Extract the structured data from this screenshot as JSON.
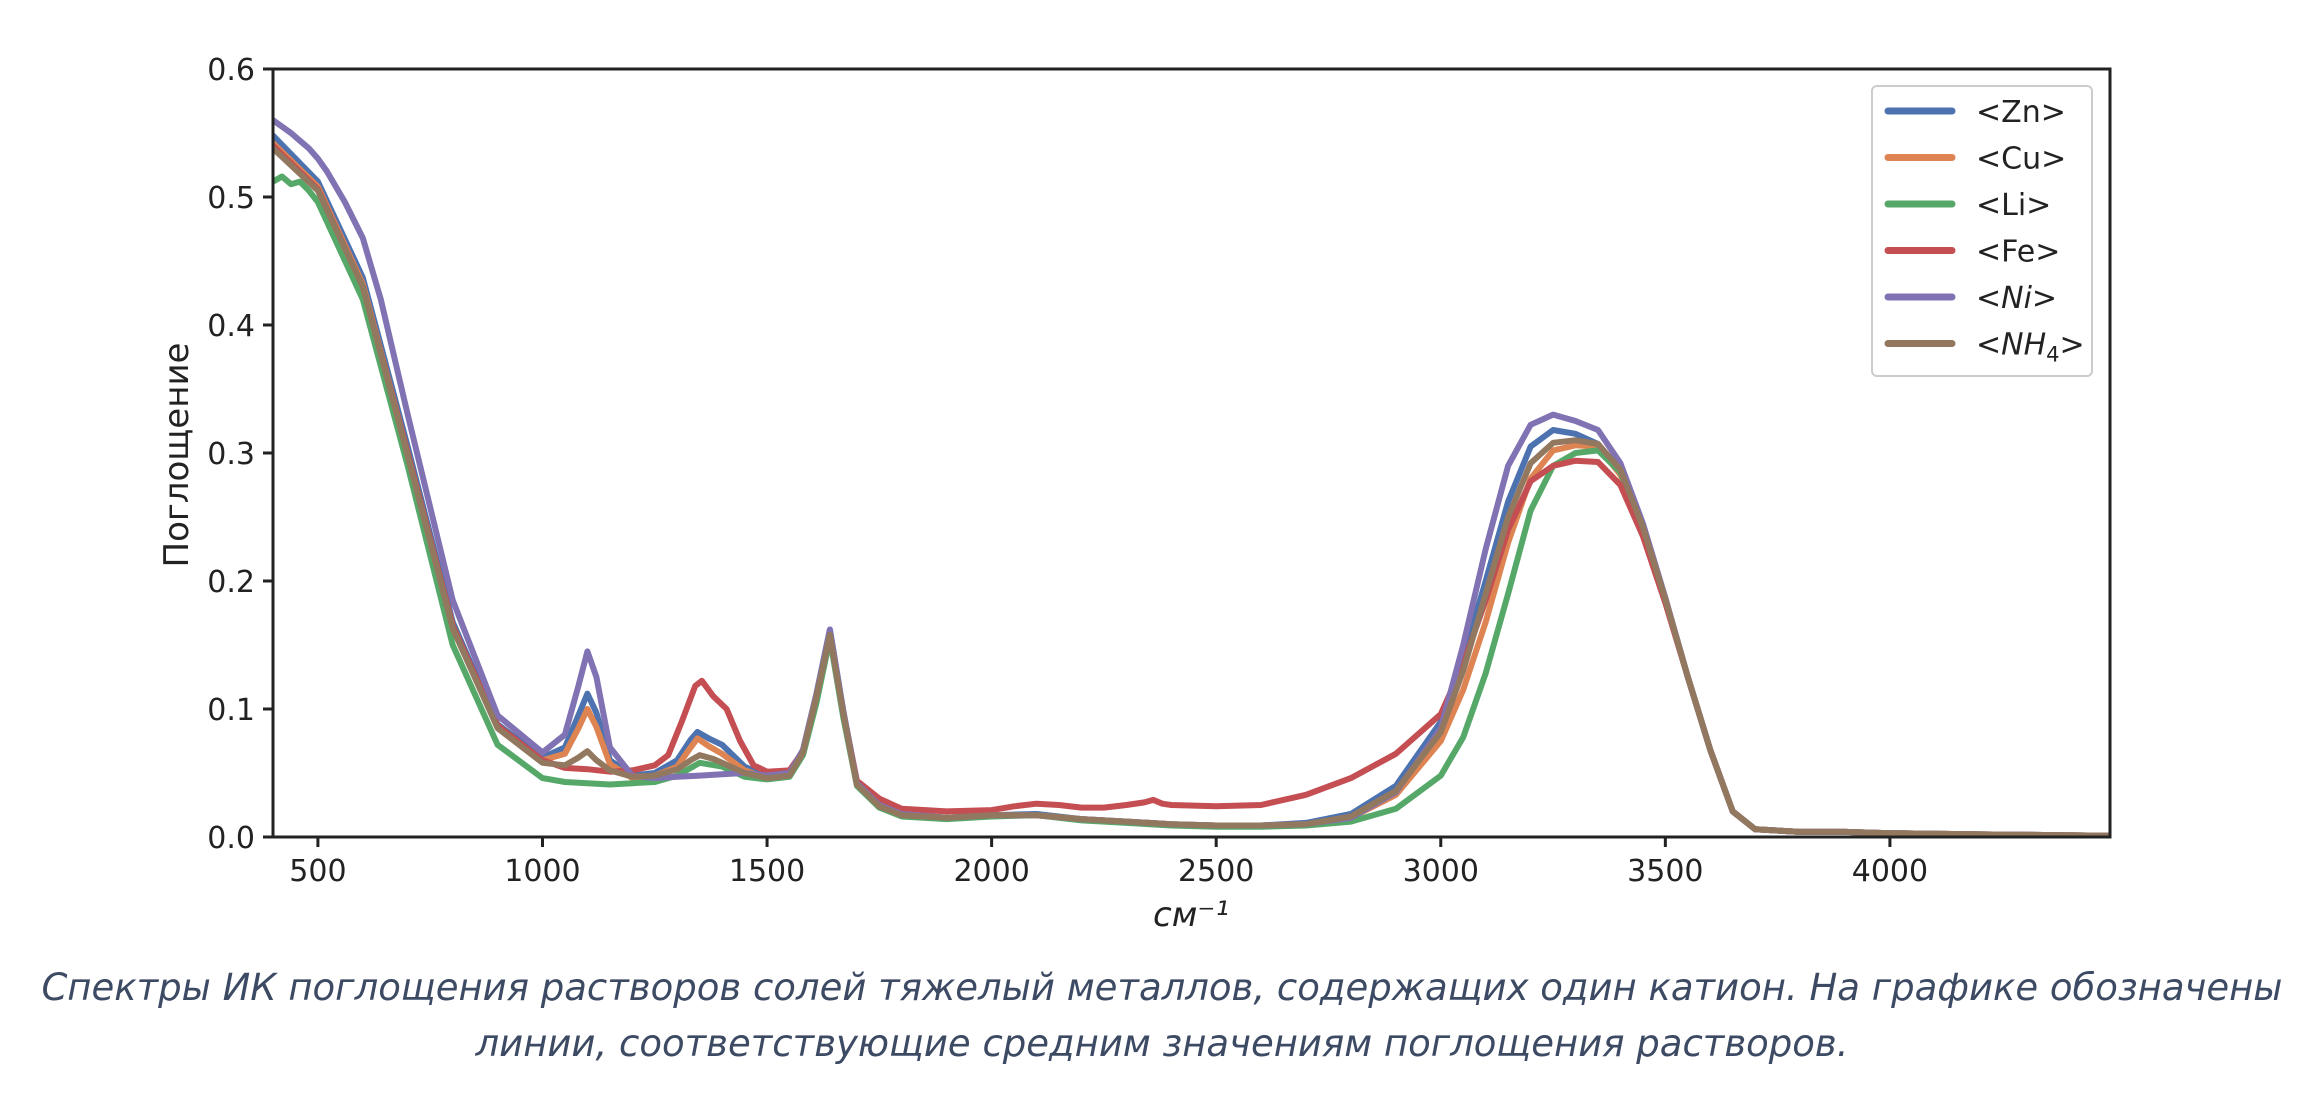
{
  "chart_data": {
    "type": "line",
    "xlabel": "см⁻¹",
    "ylabel": "Поглощение",
    "xlim": [
      400,
      4490
    ],
    "ylim": [
      0,
      0.6
    ],
    "xticks": [
      500,
      1000,
      1500,
      2000,
      2500,
      3000,
      3500,
      4000
    ],
    "yticks": [
      "0.0",
      "0.1",
      "0.2",
      "0.3",
      "0.4",
      "0.5",
      "0.6"
    ],
    "grid": false,
    "legend_position": "top-right",
    "series": [
      {
        "name": "<Zn>",
        "color": "#4c72b0",
        "x": [
          400,
          500,
          600,
          700,
          800,
          900,
          1000,
          1050,
          1080,
          1100,
          1120,
          1150,
          1200,
          1250,
          1300,
          1330,
          1345,
          1370,
          1400,
          1450,
          1500,
          1550,
          1580,
          1610,
          1640,
          1670,
          1700,
          1750,
          1800,
          1900,
          2000,
          2100,
          2200,
          2300,
          2400,
          2500,
          2600,
          2700,
          2800,
          2900,
          3000,
          3050,
          3100,
          3150,
          3200,
          3250,
          3300,
          3350,
          3400,
          3450,
          3500,
          3550,
          3600,
          3650,
          3700,
          3800,
          3900,
          4000,
          4200,
          4490
        ],
        "y": [
          0.548,
          0.512,
          0.437,
          0.305,
          0.168,
          0.088,
          0.062,
          0.07,
          0.095,
          0.112,
          0.097,
          0.06,
          0.048,
          0.05,
          0.06,
          0.076,
          0.082,
          0.077,
          0.072,
          0.055,
          0.047,
          0.049,
          0.068,
          0.112,
          0.162,
          0.098,
          0.042,
          0.025,
          0.018,
          0.015,
          0.017,
          0.018,
          0.014,
          0.012,
          0.01,
          0.009,
          0.009,
          0.011,
          0.018,
          0.04,
          0.09,
          0.14,
          0.2,
          0.262,
          0.305,
          0.318,
          0.315,
          0.307,
          0.285,
          0.24,
          0.185,
          0.125,
          0.068,
          0.02,
          0.006,
          0.004,
          0.004,
          0.003,
          0.002,
          0.001
        ]
      },
      {
        "name": "<Cu>",
        "color": "#dd8452",
        "x": [
          400,
          500,
          600,
          700,
          800,
          900,
          1000,
          1050,
          1080,
          1100,
          1120,
          1150,
          1200,
          1250,
          1300,
          1330,
          1345,
          1370,
          1400,
          1450,
          1500,
          1550,
          1580,
          1610,
          1640,
          1670,
          1700,
          1750,
          1800,
          1900,
          2000,
          2100,
          2200,
          2300,
          2400,
          2500,
          2600,
          2700,
          2800,
          2900,
          3000,
          3050,
          3100,
          3150,
          3200,
          3250,
          3300,
          3350,
          3400,
          3450,
          3500,
          3550,
          3600,
          3650,
          3700,
          3800,
          3900,
          4000,
          4200,
          4490
        ],
        "y": [
          0.542,
          0.508,
          0.432,
          0.3,
          0.165,
          0.086,
          0.06,
          0.065,
          0.085,
          0.1,
          0.086,
          0.057,
          0.046,
          0.048,
          0.055,
          0.07,
          0.077,
          0.071,
          0.065,
          0.052,
          0.046,
          0.048,
          0.067,
          0.11,
          0.16,
          0.097,
          0.041,
          0.024,
          0.017,
          0.015,
          0.017,
          0.017,
          0.014,
          0.012,
          0.01,
          0.009,
          0.009,
          0.01,
          0.015,
          0.033,
          0.075,
          0.115,
          0.168,
          0.23,
          0.28,
          0.302,
          0.306,
          0.305,
          0.283,
          0.24,
          0.185,
          0.125,
          0.068,
          0.02,
          0.006,
          0.004,
          0.004,
          0.003,
          0.002,
          0.001
        ]
      },
      {
        "name": "<Li>",
        "color": "#55a868",
        "x": [
          400,
          420,
          440,
          460,
          480,
          500,
          600,
          700,
          800,
          900,
          1000,
          1050,
          1100,
          1150,
          1200,
          1250,
          1300,
          1350,
          1400,
          1450,
          1500,
          1550,
          1580,
          1610,
          1640,
          1670,
          1700,
          1750,
          1800,
          1900,
          2000,
          2100,
          2200,
          2300,
          2400,
          2500,
          2600,
          2700,
          2800,
          2900,
          3000,
          3050,
          3100,
          3150,
          3200,
          3250,
          3300,
          3350,
          3400,
          3450,
          3500,
          3550,
          3600,
          3650,
          3700,
          3800,
          3900,
          4000,
          4200,
          4490
        ],
        "y": [
          0.512,
          0.516,
          0.51,
          0.512,
          0.505,
          0.496,
          0.42,
          0.29,
          0.15,
          0.072,
          0.046,
          0.043,
          0.042,
          0.041,
          0.042,
          0.043,
          0.048,
          0.058,
          0.055,
          0.047,
          0.045,
          0.047,
          0.064,
          0.105,
          0.155,
          0.093,
          0.04,
          0.023,
          0.016,
          0.014,
          0.016,
          0.017,
          0.013,
          0.011,
          0.009,
          0.008,
          0.008,
          0.009,
          0.012,
          0.022,
          0.048,
          0.078,
          0.128,
          0.19,
          0.255,
          0.29,
          0.3,
          0.302,
          0.285,
          0.242,
          0.186,
          0.125,
          0.068,
          0.02,
          0.006,
          0.004,
          0.004,
          0.003,
          0.002,
          0.001
        ]
      },
      {
        "name": "<Fe>",
        "color": "#c44e52",
        "x": [
          400,
          500,
          600,
          700,
          800,
          900,
          1000,
          1050,
          1100,
          1150,
          1200,
          1250,
          1280,
          1310,
          1340,
          1355,
          1380,
          1410,
          1440,
          1470,
          1500,
          1550,
          1580,
          1610,
          1640,
          1670,
          1700,
          1750,
          1800,
          1900,
          2000,
          2050,
          2100,
          2150,
          2200,
          2250,
          2300,
          2340,
          2360,
          2380,
          2400,
          2500,
          2600,
          2700,
          2800,
          2900,
          3000,
          3050,
          3100,
          3150,
          3200,
          3250,
          3300,
          3350,
          3400,
          3450,
          3500,
          3550,
          3600,
          3650,
          3700,
          3800,
          3900,
          4000,
          4200,
          4490
        ],
        "y": [
          0.54,
          0.506,
          0.43,
          0.3,
          0.165,
          0.087,
          0.06,
          0.054,
          0.053,
          0.051,
          0.052,
          0.056,
          0.064,
          0.09,
          0.118,
          0.122,
          0.11,
          0.1,
          0.075,
          0.056,
          0.051,
          0.052,
          0.067,
          0.11,
          0.158,
          0.097,
          0.044,
          0.03,
          0.022,
          0.02,
          0.021,
          0.024,
          0.026,
          0.025,
          0.023,
          0.023,
          0.025,
          0.027,
          0.029,
          0.026,
          0.025,
          0.024,
          0.025,
          0.033,
          0.046,
          0.065,
          0.096,
          0.135,
          0.185,
          0.24,
          0.278,
          0.29,
          0.294,
          0.293,
          0.275,
          0.235,
          0.183,
          0.125,
          0.068,
          0.02,
          0.006,
          0.004,
          0.004,
          0.003,
          0.002,
          0.001
        ]
      },
      {
        "name": "<Ni>",
        "color": "#8172b3",
        "x": [
          400,
          420,
          440,
          460,
          480,
          500,
          520,
          560,
          600,
          640,
          700,
          800,
          900,
          1000,
          1050,
          1080,
          1100,
          1120,
          1150,
          1200,
          1250,
          1300,
          1350,
          1400,
          1450,
          1500,
          1550,
          1580,
          1610,
          1640,
          1670,
          1700,
          1750,
          1800,
          1900,
          2000,
          2100,
          2200,
          2300,
          2400,
          2500,
          2600,
          2700,
          2800,
          2900,
          3000,
          3050,
          3100,
          3150,
          3200,
          3250,
          3300,
          3350,
          3400,
          3450,
          3500,
          3550,
          3600,
          3650,
          3700,
          3800,
          3900,
          4000,
          4200,
          4490
        ],
        "y": [
          0.56,
          0.555,
          0.55,
          0.544,
          0.538,
          0.53,
          0.52,
          0.496,
          0.468,
          0.42,
          0.33,
          0.185,
          0.095,
          0.066,
          0.08,
          0.118,
          0.145,
          0.125,
          0.07,
          0.048,
          0.046,
          0.047,
          0.048,
          0.049,
          0.05,
          0.048,
          0.05,
          0.068,
          0.112,
          0.162,
          0.098,
          0.042,
          0.025,
          0.018,
          0.015,
          0.017,
          0.017,
          0.014,
          0.012,
          0.01,
          0.009,
          0.009,
          0.01,
          0.015,
          0.035,
          0.085,
          0.15,
          0.225,
          0.29,
          0.322,
          0.33,
          0.325,
          0.318,
          0.292,
          0.245,
          0.187,
          0.125,
          0.068,
          0.02,
          0.006,
          0.004,
          0.004,
          0.003,
          0.002,
          0.001
        ]
      },
      {
        "name": "<NH4>",
        "color": "#937860",
        "x": [
          400,
          500,
          600,
          700,
          800,
          900,
          1000,
          1050,
          1080,
          1100,
          1120,
          1150,
          1200,
          1250,
          1300,
          1330,
          1350,
          1380,
          1400,
          1450,
          1500,
          1550,
          1580,
          1610,
          1640,
          1670,
          1700,
          1750,
          1800,
          1900,
          2000,
          2100,
          2200,
          2300,
          2400,
          2500,
          2600,
          2700,
          2800,
          2900,
          3000,
          3050,
          3100,
          3150,
          3200,
          3250,
          3300,
          3350,
          3400,
          3450,
          3500,
          3550,
          3600,
          3650,
          3700,
          3800,
          3900,
          4000,
          4200,
          4490
        ],
        "y": [
          0.538,
          0.505,
          0.43,
          0.298,
          0.163,
          0.085,
          0.058,
          0.056,
          0.062,
          0.067,
          0.06,
          0.052,
          0.047,
          0.048,
          0.053,
          0.06,
          0.064,
          0.061,
          0.058,
          0.05,
          0.046,
          0.048,
          0.066,
          0.11,
          0.158,
          0.096,
          0.041,
          0.024,
          0.017,
          0.015,
          0.017,
          0.017,
          0.014,
          0.012,
          0.01,
          0.009,
          0.009,
          0.01,
          0.016,
          0.036,
          0.082,
          0.13,
          0.19,
          0.25,
          0.292,
          0.308,
          0.31,
          0.307,
          0.287,
          0.242,
          0.186,
          0.125,
          0.068,
          0.02,
          0.006,
          0.004,
          0.004,
          0.003,
          0.002,
          0.001
        ]
      }
    ]
  },
  "caption": {
    "line1": "Спектры ИК поглощения растворов солей тяжелый металлов, содержащих один катион. На графике обозначены",
    "line2": "линии, соответствующие средним значениям поглощения растворов."
  }
}
